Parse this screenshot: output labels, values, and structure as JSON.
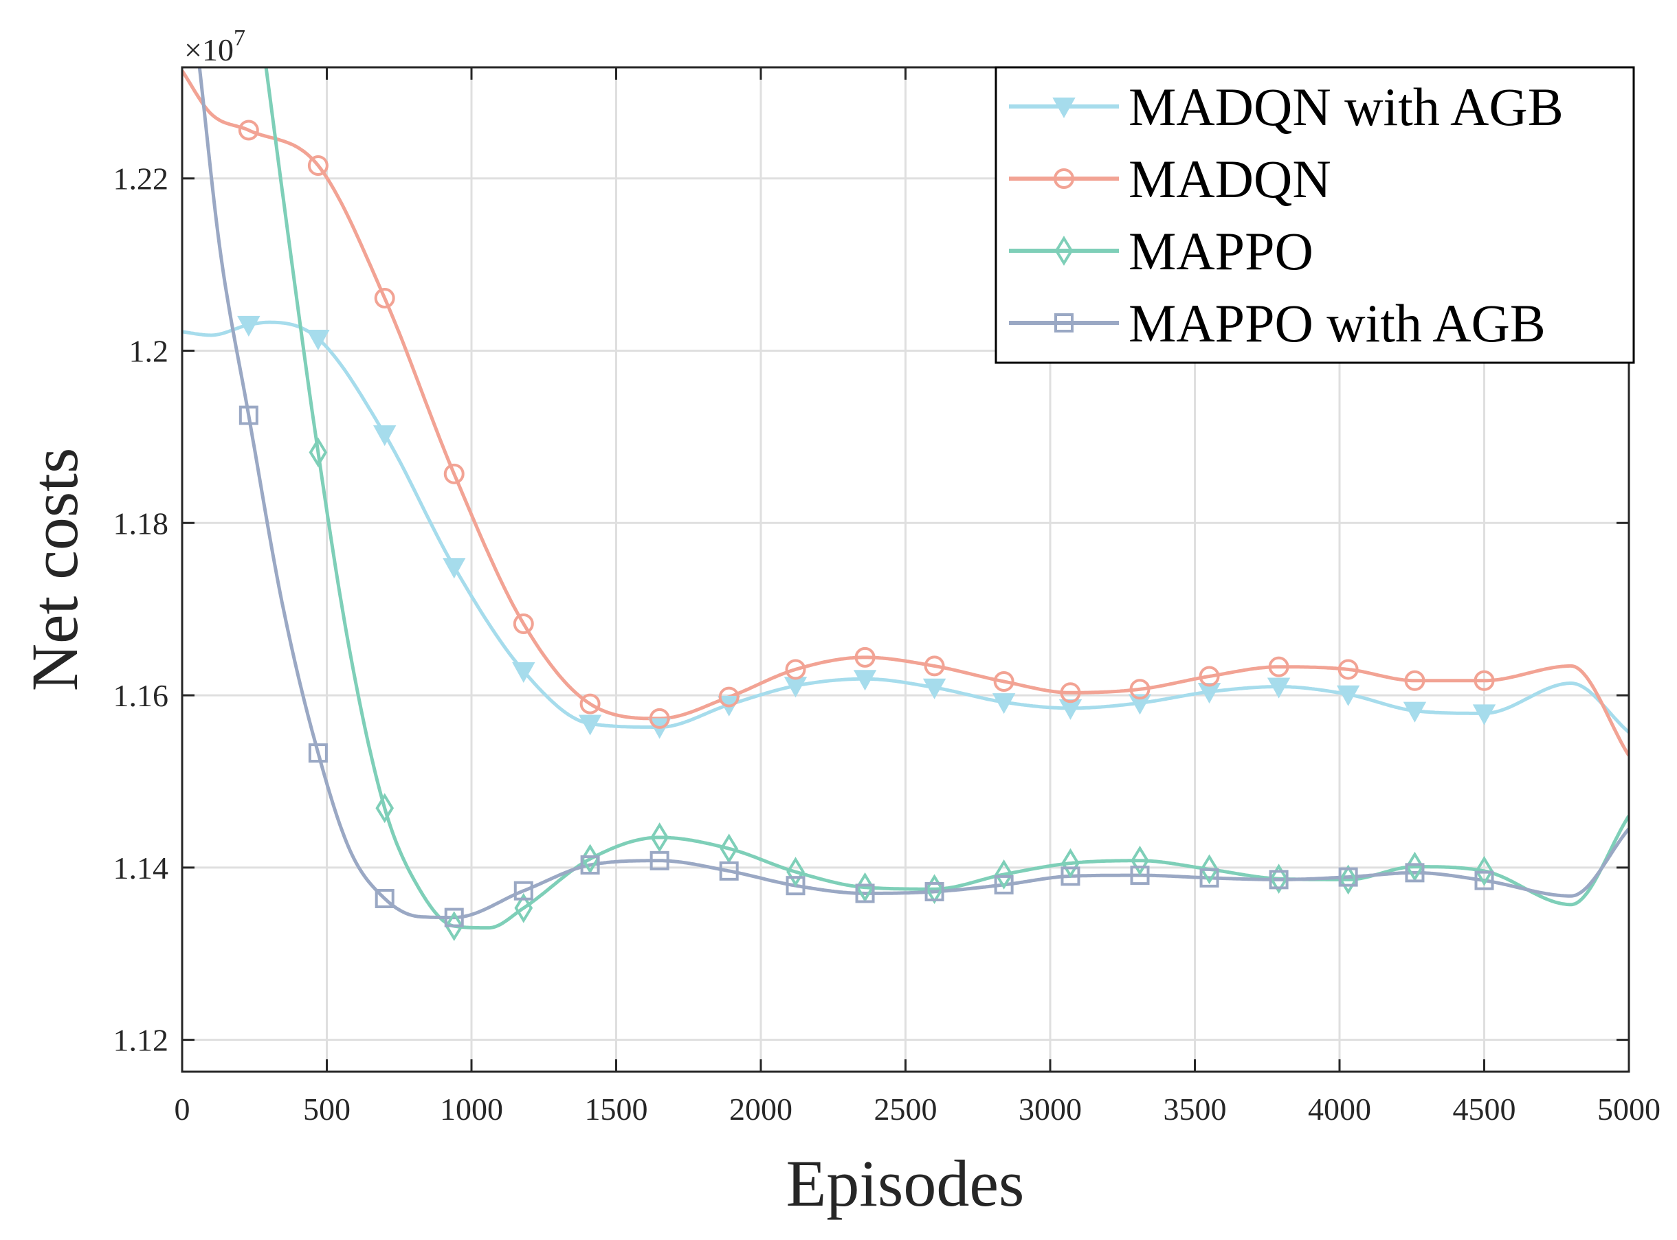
{
  "chart_data": {
    "type": "line",
    "title": "",
    "xlabel": "Episodes",
    "ylabel": "Net costs",
    "y_multiplier_base": "×10",
    "y_multiplier_exponent": "7",
    "xlim": [
      0,
      5000
    ],
    "ylim": [
      1.1163,
      1.2329
    ],
    "xticks": [
      0,
      500,
      1000,
      1500,
      2000,
      2500,
      3000,
      3500,
      4000,
      4500,
      5000
    ],
    "xtick_labels": [
      "0",
      "500",
      "1000",
      "1500",
      "2000",
      "2500",
      "3000",
      "3500",
      "4000",
      "4500",
      "5000"
    ],
    "yticks": [
      1.12,
      1.14,
      1.16,
      1.18,
      1.2,
      1.22
    ],
    "ytick_labels": [
      "1.12",
      "1.14",
      "1.16",
      "1.18",
      "1.2",
      "1.22"
    ],
    "grid": true,
    "legend_position": "top-right",
    "series": [
      {
        "name": "MADQN with AGB",
        "color": "#a6dcec",
        "marker": "triangle-down",
        "x": [
          0,
          100,
          230,
          300,
          470,
          700,
          940,
          1180,
          1410,
          1650,
          1890,
          2120,
          2360,
          2600,
          2840,
          3070,
          3310,
          3550,
          3790,
          4030,
          4260,
          4500,
          4800,
          5000
        ],
        "y": [
          1.2022,
          1.2018,
          1.203,
          1.2033,
          1.2014,
          1.1903,
          1.1749,
          1.1628,
          1.1567,
          1.1563,
          1.1589,
          1.1611,
          1.1619,
          1.1609,
          1.1592,
          1.1585,
          1.1591,
          1.1604,
          1.161,
          1.1601,
          1.1582,
          1.1579,
          1.1614,
          1.1557
        ],
        "marker_x": [
          230,
          470,
          700,
          940,
          1180,
          1410,
          1650,
          1890,
          2120,
          2360,
          2600,
          2840,
          3070,
          3310,
          3550,
          3790,
          4030,
          4260,
          4500
        ]
      },
      {
        "name": "MADQN",
        "color": "#f2a394",
        "marker": "circle",
        "x": [
          0,
          100,
          230,
          470,
          700,
          940,
          1180,
          1410,
          1650,
          1890,
          2120,
          2360,
          2600,
          2840,
          3070,
          3310,
          3550,
          3790,
          4030,
          4260,
          4500,
          4800,
          5000
        ],
        "y": [
          1.2325,
          1.2275,
          1.2256,
          1.2215,
          1.2061,
          1.1857,
          1.1683,
          1.159,
          1.1573,
          1.1598,
          1.163,
          1.1644,
          1.1634,
          1.1616,
          1.1603,
          1.1607,
          1.1622,
          1.1633,
          1.163,
          1.1617,
          1.1617,
          1.1634,
          1.153
        ],
        "marker_x": [
          230,
          470,
          700,
          940,
          1180,
          1410,
          1650,
          1890,
          2120,
          2360,
          2600,
          2840,
          3070,
          3310,
          3550,
          3790,
          4030,
          4260,
          4500
        ]
      },
      {
        "name": "MAPPO",
        "color": "#7ecfb8",
        "marker": "diamond",
        "x": [
          290,
          380,
          470,
          580,
          700,
          820,
          940,
          1060,
          1180,
          1410,
          1650,
          1890,
          2120,
          2360,
          2600,
          2840,
          3070,
          3310,
          3550,
          3790,
          4030,
          4260,
          4500,
          4800,
          5000
        ],
        "y": [
          1.2329,
          1.21,
          1.1882,
          1.165,
          1.1469,
          1.1375,
          1.1332,
          1.133,
          1.1353,
          1.141,
          1.1435,
          1.1422,
          1.1395,
          1.1377,
          1.1375,
          1.1392,
          1.1405,
          1.1408,
          1.1398,
          1.1387,
          1.1386,
          1.1401,
          1.1396,
          1.1357,
          1.146
        ],
        "marker_x": [
          470,
          700,
          940,
          1180,
          1410,
          1650,
          1890,
          2120,
          2360,
          2600,
          2840,
          3070,
          3310,
          3550,
          3790,
          4030,
          4260,
          4500
        ]
      },
      {
        "name": "MAPPO with AGB",
        "color": "#9aa8c4",
        "marker": "square",
        "x": [
          60,
          130,
          230,
          350,
          470,
          580,
          700,
          820,
          940,
          1180,
          1410,
          1650,
          1890,
          2120,
          2360,
          2600,
          2840,
          3070,
          3310,
          3550,
          3790,
          4030,
          4260,
          4500,
          4800,
          5000
        ],
        "y": [
          1.2329,
          1.212,
          1.1925,
          1.17,
          1.1533,
          1.142,
          1.1364,
          1.1343,
          1.1342,
          1.1373,
          1.1403,
          1.1408,
          1.1396,
          1.1379,
          1.137,
          1.1372,
          1.138,
          1.139,
          1.1391,
          1.1388,
          1.1386,
          1.1389,
          1.1394,
          1.1385,
          1.1367,
          1.1445
        ],
        "marker_x": [
          230,
          470,
          700,
          940,
          1180,
          1410,
          1650,
          1890,
          2120,
          2360,
          2600,
          2840,
          3070,
          3310,
          3550,
          3790,
          4030,
          4260,
          4500
        ]
      }
    ]
  }
}
